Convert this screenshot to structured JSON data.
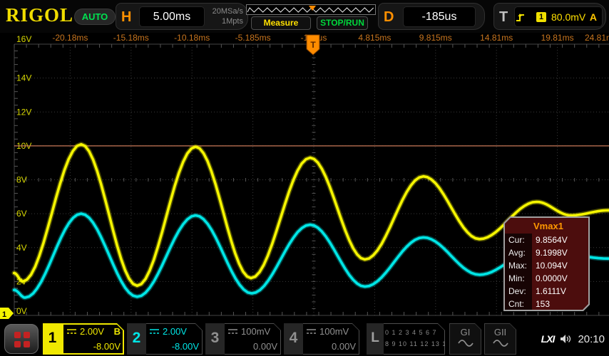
{
  "topbar": {
    "brand": "RIGOL",
    "mode_badge": "AUTO",
    "horizontal": {
      "label": "H",
      "timebase": "5.00ms",
      "sample_rate": "20MSa/s",
      "memory_depth": "1Mpts"
    },
    "measure_button": "Measure",
    "run_button": "STOP/RUN",
    "delay": {
      "label": "D",
      "value": "-185us"
    },
    "trigger": {
      "label": "T",
      "source_badge": "1",
      "level": "80.0mV",
      "sweep": "A"
    }
  },
  "chart_data": {
    "type": "line",
    "title": "Oscilloscope graticule, damped oscillation waveforms",
    "x_div": "5ms/div",
    "y_div": "2V/div",
    "x_tick_labels": [
      "-20.18ms",
      "-15.18ms",
      "-10.18ms",
      "-5.185ms",
      "-185us",
      "4.815ms",
      "9.815ms",
      "14.81ms",
      "19.81ms",
      "24.81ms"
    ],
    "y_tick_labels": [
      "16V",
      "14V",
      "12V",
      "10V",
      "8V",
      "6V",
      "4V",
      "2V",
      "0V"
    ],
    "y_min_V": 0,
    "y_max_V": 16,
    "threshold_line_V": 10,
    "trigger_time_label": "-185us",
    "series": [
      {
        "name": "CH1",
        "color": "#f5f500",
        "points_t_ms_V": [
          [
            -24.6,
            2.5
          ],
          [
            -23.9,
            2.0
          ],
          [
            -19.1,
            10.09
          ],
          [
            -14.5,
            1.75
          ],
          [
            -9.7,
            9.95
          ],
          [
            -5.15,
            2.2
          ],
          [
            -0.3,
            9.3
          ],
          [
            4.2,
            3.3
          ],
          [
            9.0,
            8.2
          ],
          [
            13.6,
            4.5
          ],
          [
            18.3,
            6.7
          ],
          [
            21.1,
            5.9
          ],
          [
            24.2,
            6.2
          ]
        ]
      },
      {
        "name": "CH2",
        "color": "#00e6e6",
        "points_t_ms_V": [
          [
            -24.6,
            1.5
          ],
          [
            -23.7,
            1.05
          ],
          [
            -19.1,
            6.0
          ],
          [
            -14.5,
            1.1
          ],
          [
            -9.7,
            5.9
          ],
          [
            -5.1,
            1.3
          ],
          [
            -0.3,
            5.35
          ],
          [
            4.2,
            1.7
          ],
          [
            9.0,
            4.6
          ],
          [
            13.6,
            2.4
          ],
          [
            18.3,
            3.9
          ],
          [
            24.2,
            3.35
          ]
        ]
      }
    ],
    "channel1_zero_marker": "1",
    "trigger_marker": "T"
  },
  "measurement_popup": {
    "title": "Vmax1",
    "rows": [
      [
        "Cur:",
        "9.8564V"
      ],
      [
        "Avg:",
        "9.1998V"
      ],
      [
        "Max:",
        "10.094V"
      ],
      [
        "Min:",
        "0.0000V"
      ],
      [
        "Dev:",
        "1.6111V"
      ],
      [
        "Cnt:",
        "153"
      ]
    ]
  },
  "bottombar": {
    "channels": [
      {
        "id": "1",
        "scale": "2.00V",
        "bw_badge": "B",
        "offset": "-8.00V"
      },
      {
        "id": "2",
        "scale": "2.00V",
        "offset": "-8.00V"
      },
      {
        "id": "3",
        "scale": "100mV",
        "offset": "0.00V"
      },
      {
        "id": "4",
        "scale": "100mV",
        "offset": "0.00V"
      }
    ],
    "digital": {
      "label": "L",
      "row1": "0 1 2 3  4 5 6 7",
      "row2": "8 9 10 11 12 13 14 15"
    },
    "generators": [
      {
        "label": "GI"
      },
      {
        "label": "GII"
      }
    ],
    "lxi": "LXI",
    "clock": "20:10"
  },
  "colors": {
    "ch1": "#f5f500",
    "ch2": "#00e6e6",
    "grid": "#3a3a3a",
    "time_labels": "#c8751e",
    "v_labels": "#d6d600",
    "threshold": "#c87858",
    "trigger_orange": "#ff8c00"
  }
}
